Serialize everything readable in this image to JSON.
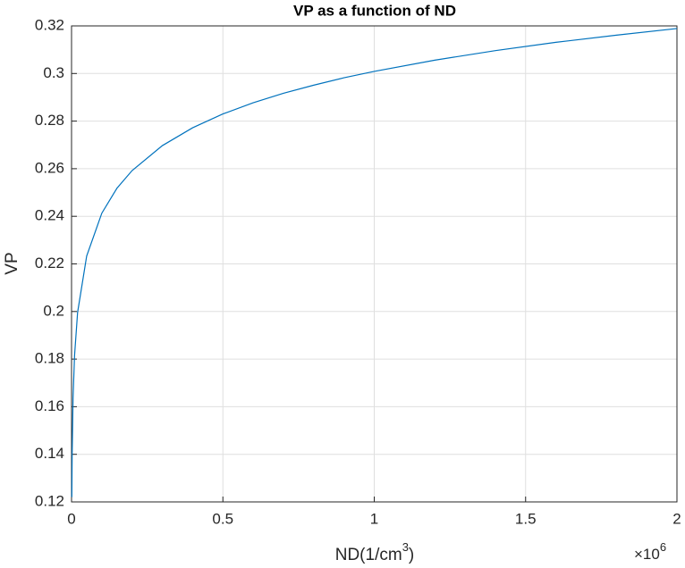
{
  "chart_data": {
    "type": "line",
    "title": "VP as a function of ND",
    "ylabel": "VP",
    "xlabel": [
      "ND(1/cm",
      "3",
      ")"
    ],
    "x_multiplier": {
      "base": "×10",
      "power": "6"
    },
    "x": [
      1000,
      2000,
      5000,
      10000,
      20000,
      50000,
      100000,
      150000,
      200000,
      300000,
      400000,
      500000,
      600000,
      700000,
      800000,
      900000,
      1000000,
      1200000,
      1400000,
      1600000,
      1800000,
      2000000
    ],
    "series": [
      {
        "name": "VP",
        "color": "#0072bd",
        "values": [
          0.122,
          0.14,
          0.1637,
          0.1816,
          0.1996,
          0.2233,
          0.2413,
          0.2518,
          0.2592,
          0.2697,
          0.2772,
          0.283,
          0.2877,
          0.2917,
          0.2951,
          0.2982,
          0.3009,
          0.3056,
          0.3096,
          0.3131,
          0.3161,
          0.3189
        ]
      }
    ],
    "xlim": [
      0,
      2000000
    ],
    "xticks": [
      0,
      {
        "value": 500000,
        "label": "0.5"
      },
      {
        "value": 1000000,
        "label": "1"
      },
      {
        "value": 1500000,
        "label": "1.5"
      },
      {
        "value": 2000000,
        "label": "2"
      }
    ],
    "ylim": [
      0.12,
      0.32
    ],
    "yticks": [
      0.12,
      0.14,
      0.16,
      0.18,
      0.2,
      0.22,
      0.24,
      0.26,
      0.28,
      0.3,
      0.32
    ],
    "grid": true
  }
}
